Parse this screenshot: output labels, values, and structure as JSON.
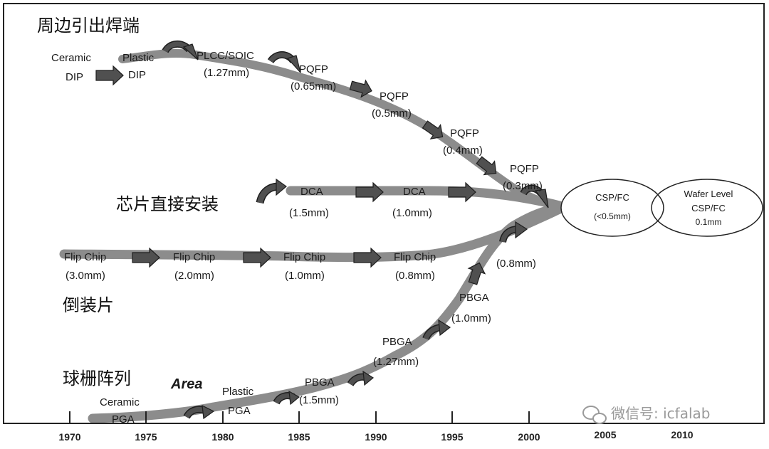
{
  "categories": {
    "peripheral": "周边引出焊端",
    "direct_chip": "芯片直接安装",
    "flip_chip": "倒装片",
    "ball_grid": "球栅阵列"
  },
  "area_label": "Area",
  "timeline": {
    "years": [
      "1970",
      "1975",
      "1980",
      "1985",
      "1990",
      "1995",
      "2000",
      "2005",
      "2010"
    ]
  },
  "peripheral_stages": {
    "ceramic_dip": [
      "Ceramic",
      "DIP"
    ],
    "plastic_dip": [
      "Plastic",
      "DIP"
    ],
    "plcc": [
      "PLCC/SOIC",
      "(1.27mm)"
    ],
    "pqfp065": [
      "PQFP",
      "(0.65mm)"
    ],
    "pqfp05": [
      "PQFP",
      "(0.5mm)"
    ],
    "pqfp04": [
      "PQFP",
      "(0.4mm)"
    ],
    "pqfp03": [
      "PQFP",
      "(0.3mm)"
    ]
  },
  "dca_stages": {
    "dca15": [
      "DCA",
      "(1.5mm)"
    ],
    "dca10": [
      "DCA",
      "(1.0mm)"
    ]
  },
  "flip_stages": {
    "fc30": [
      "Flip Chip",
      "(3.0mm)"
    ],
    "fc20": [
      "Flip Chip",
      "(2.0mm)"
    ],
    "fc10": [
      "Flip Chip",
      "(1.0mm)"
    ],
    "fc08": [
      "Flip Chip",
      "(0.8mm)"
    ]
  },
  "bga_stages": {
    "ceramic_pga": [
      "Ceramic",
      "PGA"
    ],
    "plastic_pga": [
      "Plastic",
      "PGA"
    ],
    "pbga15": [
      "PBGA",
      "(1.5mm)"
    ],
    "pbga127": [
      "PBGA",
      "(1.27mm)"
    ],
    "pbga10": [
      "PBGA",
      "(1.0mm)"
    ],
    "pbga08": "(0.8mm)"
  },
  "csp": {
    "line1": "CSP/FC",
    "line2": "(<0.5mm)"
  },
  "wafer": {
    "line1": "Wafer Level",
    "line2": "CSP/FC",
    "line3": "0.1mm"
  },
  "watermark": "微信号: icfalab"
}
